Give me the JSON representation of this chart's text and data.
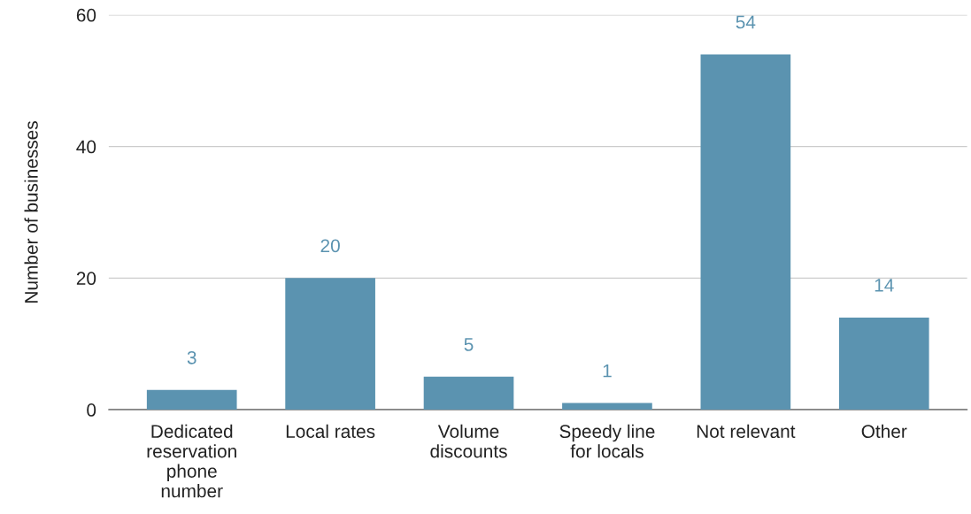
{
  "chart_data": {
    "type": "bar",
    "ylabel": "Number of businesses",
    "categories": [
      "Dedicated\nreservation\nphone\nnumber",
      "Local rates",
      "Volume\ndiscounts",
      "Speedy line\nfor locals",
      "Not relevant",
      "Other"
    ],
    "values": [
      3,
      20,
      5,
      1,
      54,
      14
    ],
    "color": "#5b93b0",
    "ylim": [
      0,
      60
    ],
    "yticks": [
      0,
      20,
      40,
      60
    ],
    "grid": "y",
    "data_labels": true
  }
}
